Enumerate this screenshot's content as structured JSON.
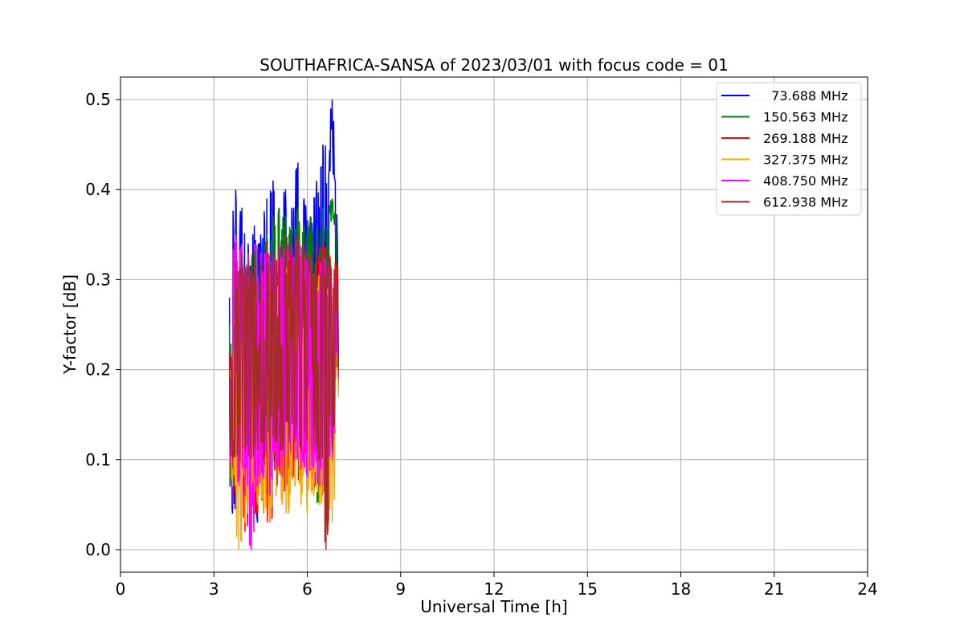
{
  "chart_data": {
    "type": "line",
    "title": "SOUTHAFRICA-SANSA of 2023/03/01 with focus code = 01",
    "xlabel": "Universal Time [h]",
    "ylabel": "Y-factor [dB]",
    "xlim": [
      0,
      24
    ],
    "ylim": [
      -0.025,
      0.525
    ],
    "xticks": [
      0,
      3,
      6,
      9,
      12,
      15,
      18,
      21,
      24
    ],
    "xtick_labels": [
      "0",
      "3",
      "6",
      "9",
      "12",
      "15",
      "18",
      "21",
      "24"
    ],
    "yticks": [
      0.0,
      0.1,
      0.2,
      0.3,
      0.4,
      0.5
    ],
    "ytick_labels": [
      "0.0",
      "0.1",
      "0.2",
      "0.3",
      "0.4",
      "0.5"
    ],
    "grid": true,
    "legend_position": "top-right",
    "data_x_range": [
      3.5,
      7.0
    ],
    "series": [
      {
        "name": "  73.688 MHz",
        "color": "#0000ff",
        "x": [
          3.5,
          3.6,
          3.7,
          3.8,
          3.9,
          4.0,
          4.1,
          4.2,
          4.3,
          4.4,
          4.5,
          4.6,
          4.7,
          4.8,
          4.9,
          5.0,
          5.1,
          5.2,
          5.3,
          5.4,
          5.5,
          5.6,
          5.7,
          5.8,
          5.9,
          6.0,
          6.1,
          6.2,
          6.3,
          6.4,
          6.5,
          6.6,
          6.7,
          6.8,
          6.9,
          7.0
        ],
        "y": [
          0.28,
          0.04,
          0.4,
          0.08,
          0.38,
          0.06,
          0.34,
          0.05,
          0.36,
          0.03,
          0.35,
          0.07,
          0.39,
          0.06,
          0.41,
          0.08,
          0.37,
          0.09,
          0.4,
          0.07,
          0.38,
          0.1,
          0.43,
          0.09,
          0.39,
          0.1,
          0.37,
          0.08,
          0.41,
          0.06,
          0.45,
          0.1,
          0.42,
          0.5,
          0.41,
          0.22
        ]
      },
      {
        "name": "150.563 MHz",
        "color": "#008000",
        "x": [
          3.5,
          3.6,
          3.7,
          3.8,
          3.9,
          4.0,
          4.1,
          4.2,
          4.3,
          4.4,
          4.5,
          4.6,
          4.7,
          4.8,
          4.9,
          5.0,
          5.1,
          5.2,
          5.3,
          5.4,
          5.5,
          5.6,
          5.7,
          5.8,
          5.9,
          6.0,
          6.1,
          6.2,
          6.3,
          6.4,
          6.5,
          6.6,
          6.7,
          6.8,
          6.9,
          7.0
        ],
        "y": [
          0.25,
          0.06,
          0.33,
          0.09,
          0.34,
          0.08,
          0.33,
          0.07,
          0.34,
          0.06,
          0.33,
          0.09,
          0.35,
          0.08,
          0.37,
          0.09,
          0.38,
          0.1,
          0.37,
          0.09,
          0.36,
          0.1,
          0.38,
          0.11,
          0.36,
          0.1,
          0.37,
          0.09,
          0.36,
          0.05,
          0.38,
          0.12,
          0.37,
          0.39,
          0.36,
          0.2
        ]
      },
      {
        "name": "269.188 MHz",
        "color": "#ff0000",
        "x": [
          3.5,
          3.6,
          3.7,
          3.8,
          3.9,
          4.0,
          4.1,
          4.2,
          4.3,
          4.4,
          4.5,
          4.6,
          4.7,
          4.8,
          4.9,
          5.0,
          5.1,
          5.2,
          5.3,
          5.4,
          5.5,
          5.6,
          5.7,
          5.8,
          5.9,
          6.0,
          6.1,
          6.2,
          6.3,
          6.4,
          6.5,
          6.6,
          6.7,
          6.8,
          6.9,
          7.0
        ],
        "y": [
          0.22,
          0.05,
          0.3,
          0.04,
          0.31,
          0.02,
          0.3,
          0.03,
          0.32,
          0.04,
          0.31,
          0.05,
          0.33,
          0.03,
          0.32,
          0.06,
          0.33,
          0.05,
          0.34,
          0.07,
          0.33,
          0.08,
          0.34,
          0.06,
          0.33,
          0.08,
          0.32,
          0.06,
          0.33,
          0.07,
          0.34,
          0.02,
          0.33,
          0.08,
          0.32,
          0.18
        ]
      },
      {
        "name": "327.375 MHz",
        "color": "#ffa500",
        "x": [
          3.5,
          3.6,
          3.7,
          3.8,
          3.9,
          4.0,
          4.1,
          4.2,
          4.3,
          4.4,
          4.5,
          4.6,
          4.7,
          4.8,
          4.9,
          5.0,
          5.1,
          5.2,
          5.3,
          5.4,
          5.5,
          5.6,
          5.7,
          5.8,
          5.9,
          6.0,
          6.1,
          6.2,
          6.3,
          6.4,
          6.5,
          6.6,
          6.7,
          6.8,
          6.9,
          7.0
        ],
        "y": [
          0.2,
          0.07,
          0.28,
          0.0,
          0.29,
          0.03,
          0.28,
          0.02,
          0.3,
          0.05,
          0.29,
          0.04,
          0.31,
          0.03,
          0.3,
          0.06,
          0.31,
          0.05,
          0.32,
          0.04,
          0.31,
          0.07,
          0.32,
          0.05,
          0.31,
          0.04,
          0.3,
          0.06,
          0.31,
          0.05,
          0.32,
          0.04,
          0.31,
          0.03,
          0.3,
          0.17
        ]
      },
      {
        "name": "408.750 MHz",
        "color": "#ff00ff",
        "x": [
          3.5,
          3.6,
          3.7,
          3.8,
          3.9,
          4.0,
          4.1,
          4.2,
          4.3,
          4.4,
          4.5,
          4.6,
          4.7,
          4.8,
          4.9,
          5.0,
          5.1,
          5.2,
          5.3,
          5.4,
          5.5,
          5.6,
          5.7,
          5.8,
          5.9,
          6.0,
          6.1,
          6.2,
          6.3,
          6.4,
          6.5,
          6.6,
          6.7,
          6.8,
          6.9,
          7.0
        ],
        "y": [
          0.21,
          0.09,
          0.35,
          0.07,
          0.34,
          0.06,
          0.33,
          0.0,
          0.34,
          0.07,
          0.33,
          0.08,
          0.34,
          0.06,
          0.33,
          0.09,
          0.34,
          0.08,
          0.35,
          0.09,
          0.34,
          0.1,
          0.35,
          0.09,
          0.34,
          0.08,
          0.33,
          0.09,
          0.34,
          0.07,
          0.33,
          0.05,
          0.32,
          0.1,
          0.31,
          0.19
        ]
      },
      {
        "name": "612.938 MHz",
        "color": "#a52a2a",
        "x": [
          3.5,
          3.6,
          3.7,
          3.8,
          3.9,
          4.0,
          4.1,
          4.2,
          4.3,
          4.4,
          4.5,
          4.6,
          4.7,
          4.8,
          4.9,
          5.0,
          5.1,
          5.2,
          5.3,
          5.4,
          5.5,
          5.6,
          5.7,
          5.8,
          5.9,
          6.0,
          6.1,
          6.2,
          6.3,
          6.4,
          6.5,
          6.6,
          6.7,
          6.8,
          6.9,
          7.0
        ],
        "y": [
          0.22,
          0.1,
          0.32,
          0.1,
          0.33,
          0.11,
          0.32,
          0.1,
          0.33,
          0.11,
          0.32,
          0.1,
          0.34,
          0.11,
          0.33,
          0.12,
          0.34,
          0.11,
          0.35,
          0.12,
          0.34,
          0.12,
          0.35,
          0.11,
          0.34,
          0.12,
          0.33,
          0.11,
          0.34,
          0.1,
          0.33,
          0.0,
          0.32,
          0.11,
          0.31,
          0.2
        ]
      }
    ]
  }
}
